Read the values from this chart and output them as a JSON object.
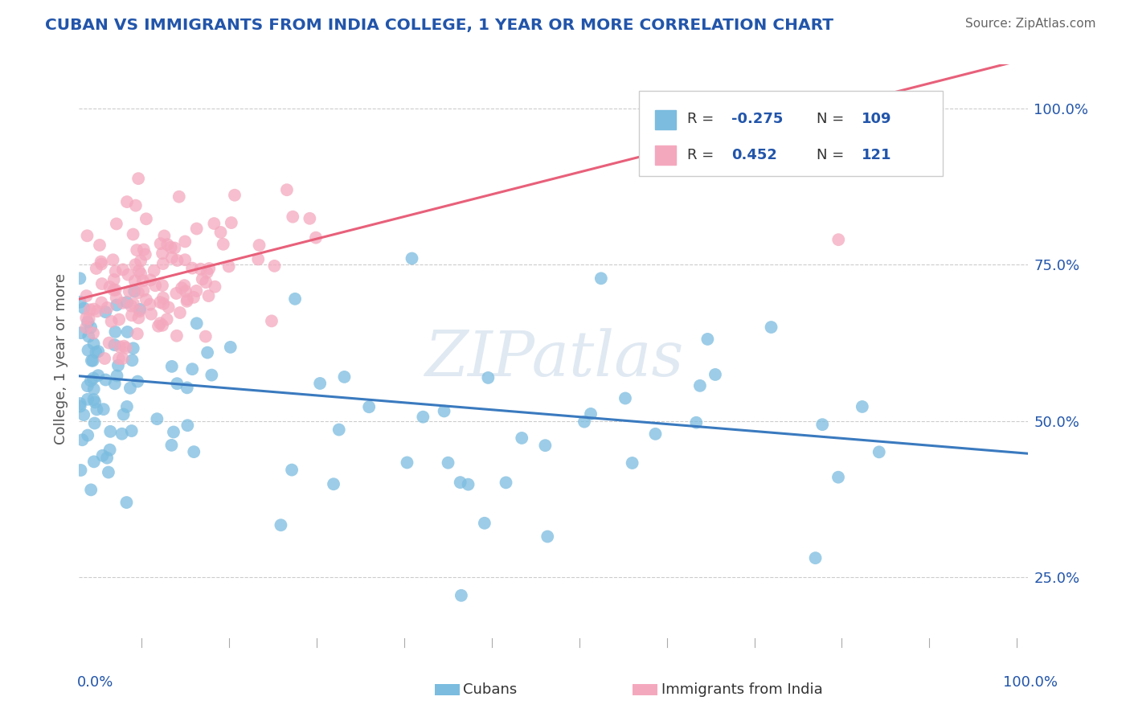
{
  "title": "CUBAN VS IMMIGRANTS FROM INDIA COLLEGE, 1 YEAR OR MORE CORRELATION CHART",
  "source_text": "Source: ZipAtlas.com",
  "ylabel": "College, 1 year or more",
  "xlim": [
    0.0,
    1.0
  ],
  "ylim": [
    0.13,
    1.07
  ],
  "yticks": [
    0.25,
    0.5,
    0.75,
    1.0
  ],
  "ytick_labels": [
    "25.0%",
    "50.0%",
    "75.0%",
    "100.0%"
  ],
  "R_cubans": -0.275,
  "N_cubans": 109,
  "R_india": 0.452,
  "N_india": 121,
  "blue_color": "#7bbcdf",
  "pink_color": "#f4a8be",
  "blue_line_color": "#3a7abf",
  "pink_line_color": "#e8607a",
  "title_color": "#2255aa",
  "source_color": "#666666",
  "tick_color": "#2255aa",
  "watermark_text": "ZIPatlas",
  "blue_line_x0": 0.0,
  "blue_line_y0": 0.572,
  "blue_line_x1": 1.0,
  "blue_line_y1": 0.448,
  "pink_line_x0": 0.0,
  "pink_line_y0": 0.695,
  "pink_line_x1": 1.0,
  "pink_line_y1": 1.08
}
